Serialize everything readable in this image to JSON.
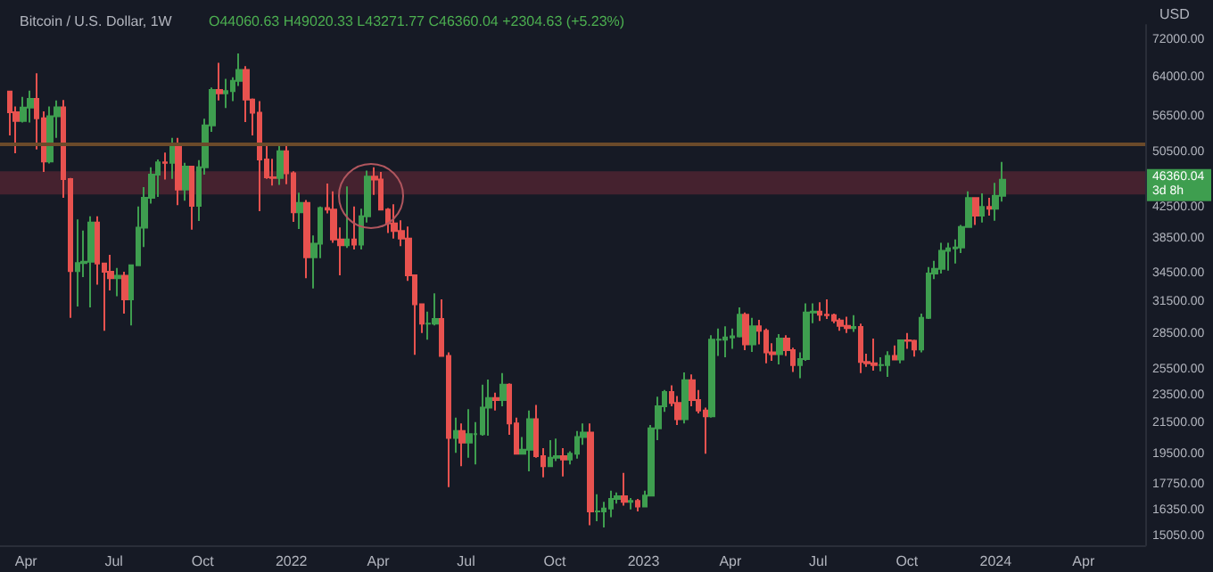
{
  "chart_data": {
    "type": "candlestick",
    "title": "Bitcoin / U.S. Dollar, 1W",
    "subtitle": "O44060.63 H49020.33 L43271.77 C46360.04 +2304.63 (+5.23%)",
    "ylabel": "USD",
    "log": true,
    "x": [
      "2021-03-15",
      "2021-03-22",
      "2021-03-29",
      "2021-04-05",
      "2021-04-12",
      "2021-04-19",
      "2021-04-26",
      "2021-05-03",
      "2021-05-10",
      "2021-05-17",
      "2021-05-24",
      "2021-05-31",
      "2021-06-07",
      "2021-06-14",
      "2021-06-21",
      "2021-06-28",
      "2021-07-05",
      "2021-07-12",
      "2021-07-19",
      "2021-07-26",
      "2021-08-02",
      "2021-08-09",
      "2021-08-16",
      "2021-08-23",
      "2021-08-30",
      "2021-09-06",
      "2021-09-13",
      "2021-09-20",
      "2021-09-27",
      "2021-10-04",
      "2021-10-11",
      "2021-10-18",
      "2021-10-25",
      "2021-11-01",
      "2021-11-08",
      "2021-11-15",
      "2021-11-22",
      "2021-11-29",
      "2021-12-06",
      "2021-12-13",
      "2021-12-20",
      "2021-12-27",
      "2022-01-03",
      "2022-01-10",
      "2022-01-17",
      "2022-01-24",
      "2022-01-31",
      "2022-02-07",
      "2022-02-14",
      "2022-02-21",
      "2022-02-28",
      "2022-03-07",
      "2022-03-14",
      "2022-03-21",
      "2022-03-28",
      "2022-04-04",
      "2022-04-11",
      "2022-04-18",
      "2022-04-25",
      "2022-05-02",
      "2022-05-09",
      "2022-05-16",
      "2022-05-23",
      "2022-05-30",
      "2022-06-06",
      "2022-06-13",
      "2022-06-20",
      "2022-06-27",
      "2022-07-04",
      "2022-07-11",
      "2022-07-18",
      "2022-07-25",
      "2022-08-01",
      "2022-08-08",
      "2022-08-15",
      "2022-08-22",
      "2022-08-29",
      "2022-09-05",
      "2022-09-12",
      "2022-09-19",
      "2022-09-26",
      "2022-10-03",
      "2022-10-10",
      "2022-10-17",
      "2022-10-24",
      "2022-10-31",
      "2022-11-07",
      "2022-11-14",
      "2022-11-21",
      "2022-11-28",
      "2022-12-05",
      "2022-12-12",
      "2022-12-19",
      "2022-12-26",
      "2023-01-02",
      "2023-01-09",
      "2023-01-16",
      "2023-01-23",
      "2023-01-30",
      "2023-02-06",
      "2023-02-13",
      "2023-02-20",
      "2023-02-27",
      "2023-03-06",
      "2023-03-13",
      "2023-03-20",
      "2023-03-27",
      "2023-04-03",
      "2023-04-10",
      "2023-04-17",
      "2023-04-24",
      "2023-05-01",
      "2023-05-08",
      "2023-05-15",
      "2023-05-22",
      "2023-05-29",
      "2023-06-05",
      "2023-06-12",
      "2023-06-19",
      "2023-06-26",
      "2023-07-03",
      "2023-07-10",
      "2023-07-17",
      "2023-07-24",
      "2023-07-31",
      "2023-08-07",
      "2023-08-14",
      "2023-08-21",
      "2023-08-28",
      "2023-09-04",
      "2023-09-11",
      "2023-09-18",
      "2023-09-25",
      "2023-10-02",
      "2023-10-09",
      "2023-10-16",
      "2023-10-23",
      "2023-10-30",
      "2023-11-06",
      "2023-11-13",
      "2023-11-20",
      "2023-11-27",
      "2023-12-04",
      "2023-12-11",
      "2023-12-18",
      "2023-12-25",
      "2024-01-01",
      "2024-01-08"
    ],
    "ohlc": [
      [
        61200,
        61200,
        53300,
        57350
      ],
      [
        57350,
        58400,
        50400,
        55800
      ],
      [
        55800,
        60200,
        55500,
        58200
      ],
      [
        58200,
        61400,
        55500,
        59800
      ],
      [
        59800,
        64850,
        51000,
        56250
      ],
      [
        56250,
        57500,
        47500,
        49100
      ],
      [
        49100,
        58400,
        48800,
        56600
      ],
      [
        56600,
        59500,
        52900,
        58250
      ],
      [
        58250,
        59600,
        43800,
        46450
      ],
      [
        46450,
        46600,
        30000,
        34750
      ],
      [
        34750,
        40900,
        31100,
        35650
      ],
      [
        35650,
        39500,
        34100,
        35800
      ],
      [
        35800,
        41300,
        31000,
        40500
      ],
      [
        40500,
        41300,
        33300,
        35600
      ],
      [
        35600,
        35700,
        28800,
        34700
      ],
      [
        34700,
        36600,
        32700,
        34000
      ],
      [
        34000,
        35100,
        32100,
        34250
      ],
      [
        34250,
        34700,
        30400,
        31800
      ],
      [
        31800,
        35400,
        29300,
        35400
      ],
      [
        35400,
        42600,
        35300,
        39850
      ],
      [
        39850,
        45300,
        37500,
        43800
      ],
      [
        43800,
        48200,
        43000,
        47100
      ],
      [
        47100,
        49400,
        43900,
        48950
      ],
      [
        48950,
        50500,
        46400,
        48900
      ],
      [
        48900,
        52900,
        46500,
        51800
      ],
      [
        51800,
        52900,
        42800,
        44950
      ],
      [
        44950,
        48900,
        43400,
        48300
      ],
      [
        48300,
        48300,
        39600,
        42700
      ],
      [
        42700,
        49300,
        40700,
        48200
      ],
      [
        48200,
        56200,
        47100,
        55000
      ],
      [
        55000,
        62000,
        53900,
        61500
      ],
      [
        61500,
        67000,
        59500,
        60850
      ],
      [
        60850,
        63700,
        58100,
        61300
      ],
      [
        61300,
        64000,
        59400,
        63300
      ],
      [
        63300,
        69000,
        62300,
        65500
      ],
      [
        65500,
        66300,
        55600,
        59700
      ],
      [
        59700,
        59900,
        53300,
        57250
      ],
      [
        57250,
        59400,
        42000,
        49400
      ],
      [
        49400,
        51900,
        46500,
        46700
      ],
      [
        46700,
        49500,
        45500,
        46600
      ],
      [
        46600,
        51900,
        45600,
        50700
      ],
      [
        50700,
        52100,
        45700,
        47300
      ],
      [
        47300,
        47600,
        40600,
        41850
      ],
      [
        41850,
        44500,
        39700,
        43100
      ],
      [
        43100,
        43500,
        34000,
        36300
      ],
      [
        36300,
        38900,
        32900,
        37900
      ],
      [
        37900,
        42600,
        36200,
        42400
      ],
      [
        42400,
        45800,
        41700,
        42200
      ],
      [
        42200,
        44700,
        38000,
        38400
      ],
      [
        38400,
        39900,
        34300,
        37700
      ],
      [
        37700,
        45400,
        37400,
        38400
      ],
      [
        38400,
        42600,
        37200,
        37800
      ],
      [
        37800,
        42300,
        37200,
        41300
      ],
      [
        41300,
        47700,
        40500,
        46800
      ],
      [
        46800,
        48200,
        44200,
        46400
      ],
      [
        46400,
        47500,
        42100,
        42200
      ],
      [
        42200,
        42400,
        39200,
        40400
      ],
      [
        40400,
        42900,
        38500,
        39450
      ],
      [
        39450,
        40800,
        37600,
        38500
      ],
      [
        38500,
        40000,
        33700,
        34300
      ],
      [
        34300,
        34300,
        26700,
        31300
      ],
      [
        31300,
        31300,
        28600,
        29450
      ],
      [
        29450,
        30600,
        28000,
        29450
      ],
      [
        29450,
        32400,
        29300,
        29900
      ],
      [
        29900,
        31800,
        26600,
        26600
      ],
      [
        26600,
        26900,
        17600,
        20550
      ],
      [
        20550,
        21900,
        19600,
        21000
      ],
      [
        21000,
        21500,
        18800,
        20250
      ],
      [
        20250,
        22500,
        19300,
        20800
      ],
      [
        20800,
        21600,
        18900,
        20800
      ],
      [
        20800,
        24300,
        20700,
        22600
      ],
      [
        22600,
        24700,
        20700,
        23300
      ],
      [
        23300,
        23700,
        22400,
        23150
      ],
      [
        23150,
        25200,
        22700,
        24300
      ],
      [
        24300,
        24400,
        20750,
        21500
      ],
      [
        21500,
        21900,
        19500,
        19550
      ],
      [
        19550,
        20600,
        19500,
        19800
      ],
      [
        19800,
        22400,
        18500,
        21800
      ],
      [
        21800,
        22800,
        19300,
        19400
      ],
      [
        19400,
        19900,
        18150,
        18800
      ],
      [
        18800,
        20400,
        18800,
        19300
      ],
      [
        19300,
        20500,
        19100,
        19400
      ],
      [
        19400,
        19900,
        18200,
        19200
      ],
      [
        19200,
        19700,
        18900,
        19550
      ],
      [
        19550,
        21000,
        19250,
        20600
      ],
      [
        20600,
        21500,
        20100,
        20900
      ],
      [
        20900,
        21500,
        15600,
        16300
      ],
      [
        16300,
        17200,
        15800,
        16300
      ],
      [
        16300,
        16800,
        15500,
        16450
      ],
      [
        16450,
        17400,
        16000,
        16950
      ],
      [
        16950,
        17300,
        16700,
        17100
      ],
      [
        17100,
        18400,
        16600,
        16800
      ],
      [
        16800,
        17000,
        16400,
        16850
      ],
      [
        16850,
        16950,
        16300,
        16550
      ],
      [
        16550,
        17400,
        16550,
        17130
      ],
      [
        17130,
        21400,
        17100,
        21180
      ],
      [
        21180,
        23400,
        20400,
        22700
      ],
      [
        22700,
        23900,
        22300,
        23750
      ],
      [
        23750,
        24250,
        22700,
        22950
      ],
      [
        22950,
        23450,
        21400,
        21800
      ],
      [
        21800,
        25250,
        21500,
        24650
      ],
      [
        24650,
        25100,
        22700,
        23150
      ],
      [
        23150,
        23900,
        22200,
        22400
      ],
      [
        22400,
        22600,
        19550,
        22000
      ],
      [
        22000,
        28400,
        21900,
        28000
      ],
      [
        28000,
        29000,
        26600,
        28000
      ],
      [
        28000,
        29200,
        26500,
        28200
      ],
      [
        28200,
        29000,
        27200,
        28300
      ],
      [
        28300,
        31000,
        28200,
        30300
      ],
      [
        30300,
        30500,
        27100,
        27600
      ],
      [
        27600,
        30000,
        26950,
        29200
      ],
      [
        29200,
        29800,
        27600,
        28800
      ],
      [
        28800,
        29000,
        26000,
        26900
      ],
      [
        26900,
        27700,
        26200,
        26750
      ],
      [
        26750,
        28500,
        25900,
        28100
      ],
      [
        28100,
        28400,
        26600,
        27100
      ],
      [
        27100,
        27300,
        25300,
        25850
      ],
      [
        25850,
        26900,
        24800,
        26350
      ],
      [
        26350,
        31400,
        26200,
        30500
      ],
      [
        30500,
        31400,
        29500,
        30600
      ],
      [
        30600,
        31500,
        29700,
        30300
      ],
      [
        30300,
        31800,
        29900,
        30250
      ],
      [
        30250,
        30400,
        29500,
        29750
      ],
      [
        29750,
        29950,
        28800,
        29250
      ],
      [
        29250,
        30100,
        28600,
        29050
      ],
      [
        29050,
        30250,
        28700,
        29150
      ],
      [
        29150,
        29450,
        25200,
        26100
      ],
      [
        26100,
        26800,
        25700,
        26000
      ],
      [
        26000,
        28100,
        25400,
        25850
      ],
      [
        25850,
        26500,
        25350,
        25850
      ],
      [
        25850,
        27000,
        24900,
        26600
      ],
      [
        26600,
        27500,
        26300,
        26300
      ],
      [
        26300,
        28000,
        26000,
        27950
      ],
      [
        27950,
        28600,
        27200,
        27900
      ],
      [
        27900,
        28000,
        26550,
        27150
      ],
      [
        27150,
        30400,
        26900,
        30000
      ],
      [
        30000,
        35200,
        29900,
        34500
      ],
      [
        34500,
        35900,
        33900,
        35000
      ],
      [
        35000,
        38000,
        34500,
        37050
      ],
      [
        37050,
        38000,
        34800,
        37350
      ],
      [
        37350,
        38400,
        35600,
        37450
      ],
      [
        37450,
        40200,
        36800,
        39950
      ],
      [
        39950,
        44700,
        39950,
        43750
      ],
      [
        43750,
        43800,
        40200,
        41400
      ],
      [
        41400,
        44400,
        40500,
        42550
      ],
      [
        42550,
        43800,
        41400,
        42300
      ],
      [
        42300,
        45900,
        40750,
        44060
      ],
      [
        44060.63,
        49020.33,
        43271.77,
        46360.04
      ]
    ],
    "xlim": [
      "2021-03-05",
      "2024-06-04"
    ],
    "xticks": [
      {
        "value": "2021-04-01",
        "label": "Apr"
      },
      {
        "value": "2021-07-01",
        "label": "Jul"
      },
      {
        "value": "2021-10-01",
        "label": "Oct"
      },
      {
        "value": "2022-01-01",
        "label": "2022"
      },
      {
        "value": "2022-04-01",
        "label": "Apr"
      },
      {
        "value": "2022-07-01",
        "label": "Jul"
      },
      {
        "value": "2022-10-01",
        "label": "Oct"
      },
      {
        "value": "2023-01-01",
        "label": "2023"
      },
      {
        "value": "2023-04-01",
        "label": "Apr"
      },
      {
        "value": "2023-07-01",
        "label": "Jul"
      },
      {
        "value": "2023-10-01",
        "label": "Oct"
      },
      {
        "value": "2024-01-01",
        "label": "2024"
      },
      {
        "value": "2024-04-01",
        "label": "Apr"
      }
    ],
    "ylim": [
      14650,
      75500
    ],
    "yticks": [
      {
        "value": 72000,
        "label": "72000.00"
      },
      {
        "value": 64000,
        "label": "64000.00"
      },
      {
        "value": 56500,
        "label": "56500.00"
      },
      {
        "value": 50500,
        "label": "50500.00"
      },
      {
        "value": 42500,
        "label": "42500.00"
      },
      {
        "value": 38500,
        "label": "38500.00"
      },
      {
        "value": 34500,
        "label": "34500.00"
      },
      {
        "value": 31500,
        "label": "31500.00"
      },
      {
        "value": 28500,
        "label": "28500.00"
      },
      {
        "value": 25500,
        "label": "25500.00"
      },
      {
        "value": 23500,
        "label": "23500.00"
      },
      {
        "value": 21500,
        "label": "21500.00"
      },
      {
        "value": 19500,
        "label": "19500.00"
      },
      {
        "value": 17750,
        "label": "17750.00"
      },
      {
        "value": 16350,
        "label": "16350.00"
      },
      {
        "value": 15050,
        "label": "15050.00"
      }
    ],
    "ref_lines": [
      {
        "axis": "y",
        "value": 51900,
        "color": "#6b4a2a"
      }
    ],
    "bands": [
      {
        "axis": "y",
        "from": 44250,
        "to": 47600,
        "color": "#4a2331"
      }
    ],
    "annotations": [
      "46360.04",
      "3d 8h"
    ]
  }
}
